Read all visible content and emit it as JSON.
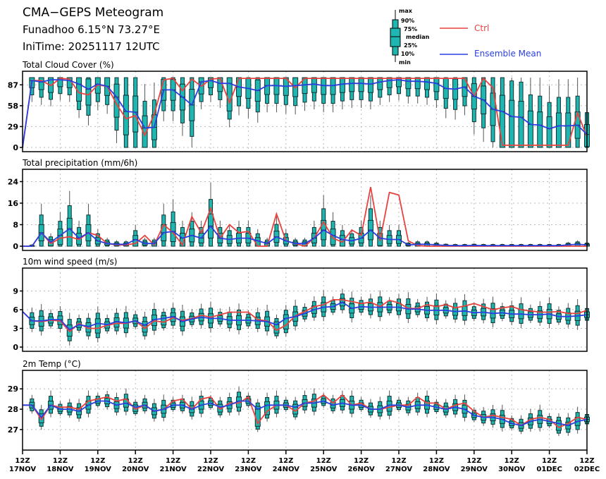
{
  "header": {
    "title": "CMA−GEPS Meteogram",
    "location": "Funadhoo 6.15°N 73.27°E",
    "init_time": "IniTime: 20251117 12UTC"
  },
  "legend": {
    "box_labels": [
      "max",
      "90%",
      "75%",
      "median",
      "25%",
      "10%",
      "min"
    ],
    "ctrl_label": "Ctrl",
    "mean_label": "Ensemble Mean",
    "ctrl_color": "#e8423f",
    "mean_color": "#2a3fe0",
    "box_color": "#1fb5b0"
  },
  "chart_data": [
    {
      "type": "line",
      "title": "Total Cloud Cover (%)",
      "ylim": [
        0,
        100
      ],
      "yticks": [
        0,
        29,
        58,
        87
      ],
      "ctrl": [
        0,
        93,
        93,
        86,
        96,
        95,
        76,
        73,
        87,
        85,
        60,
        40,
        44,
        17,
        46,
        94,
        96,
        79,
        95,
        85,
        95,
        96,
        62,
        96,
        96,
        96,
        96,
        96,
        96,
        83,
        96,
        96,
        96,
        96,
        96,
        96,
        96,
        96,
        96,
        96,
        96,
        96,
        96,
        96,
        96,
        96,
        96,
        96,
        71,
        96,
        83,
        3,
        3,
        3,
        3,
        3,
        3,
        3,
        3,
        48,
        15
      ],
      "mean": [
        0,
        93,
        91,
        94,
        94,
        93,
        88,
        81,
        88,
        85,
        70,
        50,
        49,
        27,
        28,
        80,
        80,
        70,
        59,
        91,
        93,
        89,
        89,
        84,
        82,
        79,
        86,
        86,
        85,
        86,
        87,
        88,
        86,
        86,
        88,
        89,
        89,
        88,
        91,
        93,
        94,
        92,
        92,
        91,
        89,
        82,
        81,
        84,
        71,
        66,
        53,
        50,
        43,
        42,
        32,
        31,
        26,
        30,
        30,
        31,
        18
      ],
      "boxes_note": "per-timestep ensemble boxes (min,10,25,50,75,90,max)"
    },
    {
      "type": "line",
      "title": "Total precipitation (mm/6h)",
      "ylim": [
        0,
        27
      ],
      "yticks": [
        0,
        8,
        16,
        24
      ],
      "ctrl": [
        0,
        0,
        5,
        1,
        3,
        3.5,
        2.5,
        5,
        4,
        1,
        0.5,
        0.5,
        1,
        4,
        0.5,
        8,
        5,
        0.5,
        11,
        5,
        14,
        3,
        8,
        5,
        5.5,
        0,
        0,
        12,
        2,
        1,
        0,
        3,
        9,
        3,
        1.5,
        6,
        4,
        22,
        2,
        20,
        19,
        2,
        0.2,
        0,
        0,
        0,
        0,
        0,
        0,
        0,
        0,
        0,
        0,
        0,
        0,
        0,
        0,
        0,
        0,
        0,
        0
      ],
      "mean": [
        0,
        0,
        5,
        1.5,
        4,
        6.5,
        3,
        5,
        2,
        1,
        0.7,
        0.7,
        2.5,
        1,
        1,
        5,
        5.5,
        3,
        4,
        3,
        7.5,
        3,
        2.5,
        3,
        3,
        2,
        1,
        3.5,
        2,
        1,
        1,
        3,
        6,
        4,
        2.5,
        2,
        3,
        6,
        3,
        2.5,
        2.5,
        0.5,
        0.7,
        0.7,
        0.5,
        0.3,
        0.2,
        0.2,
        0.3,
        0.2,
        0.2,
        0.2,
        0.2,
        0.2,
        0.2,
        0.2,
        0.2,
        0.2,
        0.5,
        0.7,
        0.5
      ]
    },
    {
      "type": "line",
      "title": "10m wind speed (m/s)",
      "ylim": [
        0,
        12
      ],
      "yticks": [
        0,
        3,
        6,
        9
      ],
      "ctrl": [
        5.7,
        4.2,
        4.1,
        4.3,
        4.2,
        2.5,
        3.8,
        3.0,
        3.0,
        3.5,
        3.8,
        3.8,
        4.2,
        3.0,
        4.2,
        4.0,
        4.7,
        4.3,
        4.6,
        5.1,
        4.8,
        5.2,
        5.6,
        5.6,
        5.6,
        4.4,
        4.2,
        2.7,
        3.5,
        5.0,
        5.7,
        6.5,
        6.8,
        7.6,
        7.6,
        7.3,
        7.0,
        7.2,
        6.5,
        7.5,
        7.1,
        6.2,
        6.2,
        6.8,
        6.5,
        6.8,
        6.3,
        6.6,
        7.0,
        6.5,
        6.0,
        6.3,
        6.5,
        6.0,
        5.8,
        5.6,
        5.6,
        5.7,
        5.4,
        5.4,
        5.9
      ],
      "mean": [
        5.7,
        4.2,
        4.2,
        4.4,
        4.4,
        2.8,
        3.6,
        3.3,
        3.8,
        3.6,
        4.1,
        3.9,
        4.2,
        3.5,
        4.4,
        4.6,
        4.9,
        4.1,
        4.5,
        4.8,
        4.6,
        4.6,
        4.3,
        4.3,
        4.3,
        4.2,
        4.1,
        3.6,
        4.6,
        4.9,
        5.4,
        6.0,
        6.4,
        6.5,
        7.2,
        6.2,
        6.5,
        6.4,
        6.4,
        6.4,
        6.4,
        6.1,
        6.1,
        5.9,
        5.9,
        5.9,
        5.7,
        5.8,
        5.5,
        5.6,
        5.4,
        5.5,
        5.3,
        5.3,
        5.2,
        5.2,
        5.3,
        4.9,
        4.9,
        5.0,
        5.2
      ]
    },
    {
      "type": "line",
      "title": "2m Temp (°C)",
      "ylim": [
        26.2,
        29.7
      ],
      "yticks": [
        27,
        28,
        29
      ],
      "xtick_labels": [
        "12Z 17NOV",
        "12Z 18NOV",
        "12Z 19NOV",
        "12Z 20NOV",
        "12Z 21NOV",
        "12Z 22NOV",
        "12Z 23NOV",
        "12Z 24NOV",
        "12Z 25NOV",
        "12Z 26NOV",
        "12Z 27NOV",
        "12Z 28NOV",
        "12Z 29NOV",
        "12Z 30NOV",
        "12Z 01DEC",
        "12Z 02DEC"
      ],
      "ctrl": [
        28.2,
        28.2,
        27.5,
        28.2,
        28.1,
        28.1,
        28.0,
        28.4,
        28.5,
        28.6,
        28.4,
        28.5,
        28.0,
        28.2,
        27.9,
        28.0,
        28.4,
        28.5,
        28.0,
        28.5,
        28.6,
        28.0,
        28.3,
        28.3,
        28.6,
        27.3,
        27.9,
        28.2,
        28.2,
        27.9,
        28.3,
        28.4,
        28.7,
        28.3,
        28.7,
        28.2,
        28.3,
        28.0,
        28.0,
        28.1,
        28.2,
        28.2,
        28.6,
        28.3,
        28.3,
        28.0,
        28.2,
        28.3,
        27.9,
        27.6,
        27.7,
        27.6,
        27.5,
        27.2,
        27.5,
        27.6,
        27.5,
        27.1,
        27.3,
        27.6,
        27.5
      ],
      "mean": [
        28.2,
        28.2,
        27.6,
        28.2,
        28.0,
        28.0,
        27.9,
        28.2,
        28.4,
        28.4,
        28.2,
        28.3,
        28.1,
        28.2,
        27.9,
        28.0,
        28.2,
        28.2,
        28.0,
        28.2,
        28.3,
        28.1,
        28.2,
        28.4,
        28.4,
        28.0,
        28.2,
        28.2,
        28.2,
        28.1,
        28.3,
        28.3,
        28.4,
        28.2,
        28.3,
        28.2,
        28.2,
        28.0,
        28.0,
        28.2,
        28.2,
        28.1,
        28.2,
        28.2,
        28.1,
        28.0,
        28.1,
        28.0,
        27.7,
        27.6,
        27.6,
        27.5,
        27.3,
        27.2,
        27.4,
        27.5,
        27.4,
        27.3,
        27.2,
        27.4,
        27.5
      ]
    }
  ]
}
